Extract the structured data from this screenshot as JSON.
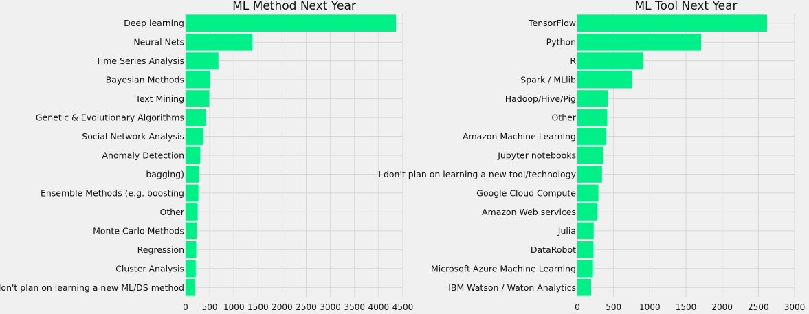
{
  "colors": {
    "background": "#f0f0f0",
    "bar": "#00ef87",
    "grid": "#d6d6d6",
    "text": "#111111"
  },
  "chart_data": [
    {
      "type": "bar",
      "orientation": "horizontal",
      "title": "ML Method Next Year",
      "xlabel": "",
      "ylabel": "",
      "xlim": [
        0,
        4500
      ],
      "xticks": [
        "0",
        "500",
        "1000",
        "1500",
        "2000",
        "2500",
        "3000",
        "3500",
        "4000",
        "4500"
      ],
      "grid": true,
      "categories": [
        "Deep learning",
        "Neural Nets",
        "Time Series Analysis",
        "Bayesian Methods",
        "Text Mining",
        "Genetic & Evolutionary Algorithms",
        "Social Network Analysis",
        "Anomaly Detection",
        "bagging)",
        "Ensemble Methods (e.g. boosting",
        "Other",
        "Monte Carlo Methods",
        "Regression",
        "Cluster Analysis",
        "I don't plan on learning a new ML/DS method"
      ],
      "values": [
        4360,
        1380,
        680,
        500,
        490,
        420,
        360,
        300,
        270,
        265,
        250,
        230,
        220,
        210,
        200
      ]
    },
    {
      "type": "bar",
      "orientation": "horizontal",
      "title": "ML Tool Next Year",
      "xlabel": "",
      "ylabel": "",
      "xlim": [
        0,
        3000
      ],
      "xticks": [
        "0",
        "500",
        "1000",
        "1500",
        "2000",
        "2500",
        "3000"
      ],
      "grid": true,
      "categories": [
        "TensorFlow",
        "Python",
        "R",
        "Spark / MLlib",
        "Hadoop/Hive/Pig",
        "Other",
        "Amazon Machine Learning",
        "Jupyter notebooks",
        "I don't plan on learning a new tool/technology",
        "Google Cloud Compute",
        "Amazon Web services",
        "Julia",
        "DataRobot",
        "Microsoft Azure Machine Learning",
        "IBM Watson / Waton Analytics"
      ],
      "values": [
        2620,
        1710,
        910,
        760,
        420,
        410,
        400,
        360,
        340,
        290,
        275,
        225,
        220,
        215,
        190
      ]
    }
  ]
}
